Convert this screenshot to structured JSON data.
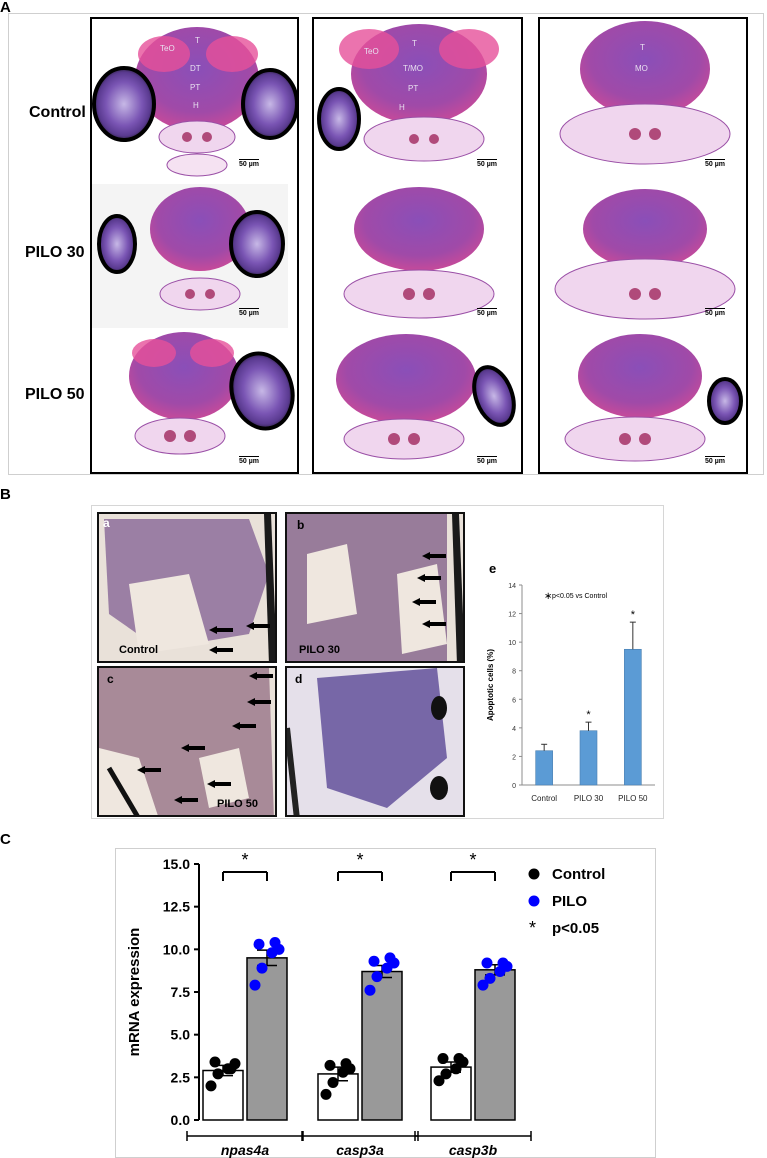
{
  "panel_a": {
    "letter": "A",
    "rows": [
      "Control",
      "PILO 30",
      "PILO 50"
    ],
    "scale_label": "50 µm",
    "anatomy_labels": {
      "col1": [
        "TeO",
        "T",
        "DT",
        "PT",
        "H"
      ],
      "col2": [
        "TeO",
        "T",
        "T/MO",
        "PT",
        "H"
      ],
      "col3": [
        "T",
        "MO"
      ]
    }
  },
  "panel_b": {
    "letter": "B",
    "subpanels": [
      {
        "letter": "a",
        "label": "Control"
      },
      {
        "letter": "b",
        "label": "PILO 30"
      },
      {
        "letter": "c",
        "label": "PILO 50"
      },
      {
        "letter": "d",
        "label": ""
      }
    ],
    "chart_letter": "e"
  },
  "panel_c": {
    "letter": "C"
  },
  "chart_data": [
    {
      "type": "bar",
      "title": "",
      "annotation": "p<0.05 vs Control",
      "annotation_marker": "∗",
      "categories": [
        "Control",
        "PILO 30",
        "PILO 50"
      ],
      "values": [
        2.4,
        3.8,
        9.5
      ],
      "errors": [
        0.45,
        0.6,
        1.9
      ],
      "significant": [
        false,
        true,
        true
      ],
      "significance_mark": "*",
      "xlabel": "",
      "ylabel": "Apoptotic cells (%)",
      "ylim": [
        0,
        14
      ],
      "yticks": [
        "0",
        "2",
        "4",
        "6",
        "8",
        "10",
        "12",
        "14"
      ],
      "bar_color": "#5b9bd5",
      "grid": false
    },
    {
      "type": "bar",
      "title": "",
      "groups": [
        "npas4a",
        "casp3a",
        "casp3b"
      ],
      "series": [
        {
          "name": "Control",
          "color": "#ffffff",
          "dot_color": "#000000",
          "values": [
            2.9,
            2.7,
            3.1
          ],
          "errors": [
            0.3,
            0.4,
            0.3
          ],
          "points": [
            [
              2.0,
              2.7,
              3.0,
              3.3,
              3.4,
              3.0
            ],
            [
              1.5,
              2.2,
              2.8,
              3.0,
              3.2,
              3.3
            ],
            [
              2.3,
              2.7,
              3.0,
              3.4,
              3.6,
              3.6
            ]
          ]
        },
        {
          "name": "PILO",
          "color": "#999999",
          "dot_color": "#0000ff",
          "values": [
            9.5,
            8.7,
            8.8
          ],
          "errors": [
            0.45,
            0.35,
            0.3
          ],
          "points": [
            [
              7.9,
              8.9,
              9.8,
              10.0,
              10.3,
              10.4
            ],
            [
              7.6,
              8.4,
              8.9,
              9.2,
              9.3,
              9.5
            ],
            [
              7.9,
              8.3,
              8.7,
              9.0,
              9.2,
              9.2
            ]
          ]
        }
      ],
      "ylabel": "mRNA expression",
      "ylim": [
        0,
        15
      ],
      "yticks": [
        "0.0",
        "2.5",
        "5.0",
        "7.5",
        "10.0",
        "12.5",
        "15.0"
      ],
      "significance_mark": "*",
      "legend": {
        "items": [
          "Control",
          "PILO",
          "p<0.05"
        ],
        "placement": "right"
      },
      "grid": false
    }
  ]
}
